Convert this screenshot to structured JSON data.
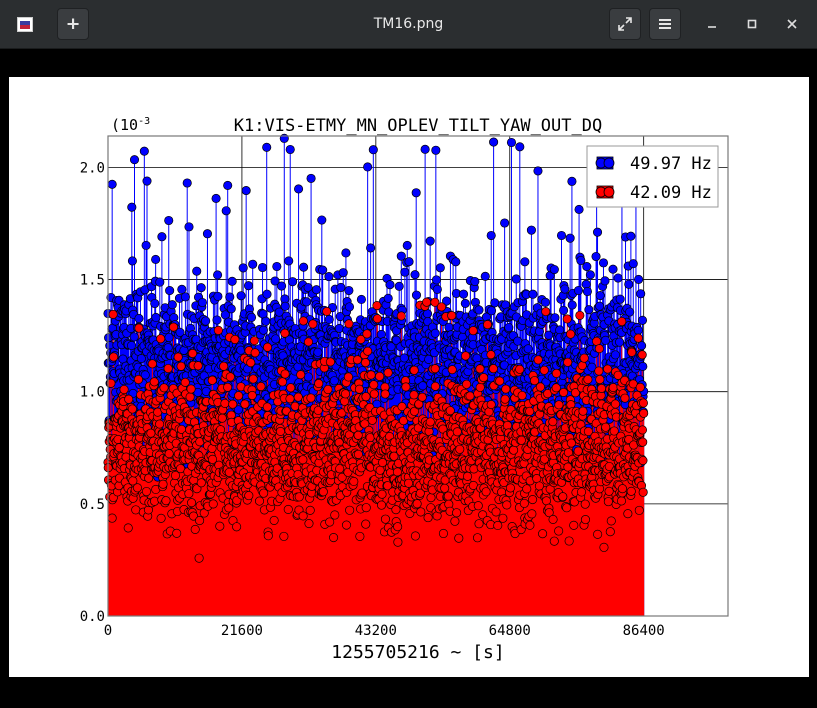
{
  "window": {
    "title": "TM16.png",
    "app_icon": "image-viewer-icon",
    "buttons": {
      "new_tab": "plus-icon",
      "fullscreen": "expand-icon",
      "menu": "hamburger-icon",
      "minimize": "minimize-icon",
      "maximize": "maximize-icon",
      "close": "close-icon"
    }
  },
  "colors": {
    "series1": "#0000ff",
    "series2": "#ff0000"
  },
  "chart_data": {
    "type": "scatter",
    "title": "K1:VIS-ETMY_MN_OPLEV_TILT_YAW_OUT_DQ",
    "xlabel": "1255705216 ~ [s]",
    "ylabel": "",
    "y_exponent_label": "(10",
    "y_exponent": "-3",
    "xlim": [
      0,
      100000
    ],
    "ylim": [
      0,
      0.00214
    ],
    "xticks": [
      0,
      21600,
      43200,
      64800,
      86400
    ],
    "xtick_labels": [
      "0",
      "21600",
      "43200",
      "64800",
      "86400"
    ],
    "yticks": [
      0.0,
      0.0005,
      0.001,
      0.0015,
      0.002
    ],
    "ytick_labels": [
      "0.0",
      "0.5",
      "1.0",
      "1.5",
      "2.0"
    ],
    "grid": true,
    "legend_position": "top-right",
    "series": [
      {
        "name": "49.97 Hz",
        "color": "#0000ff",
        "x_range": [
          0,
          86400
        ],
        "typical_range": [
          0.0009,
          0.0014
        ],
        "max": 0.00213,
        "count": 1800
      },
      {
        "name": "42.09 Hz",
        "color": "#ff0000",
        "x_range": [
          0,
          86400
        ],
        "typical_range": [
          0.0005,
          0.001
        ],
        "max": 0.00142,
        "count": 2200
      }
    ],
    "note": "Stem/marker plot of dense time series; markers drawn with stems from y=0."
  }
}
